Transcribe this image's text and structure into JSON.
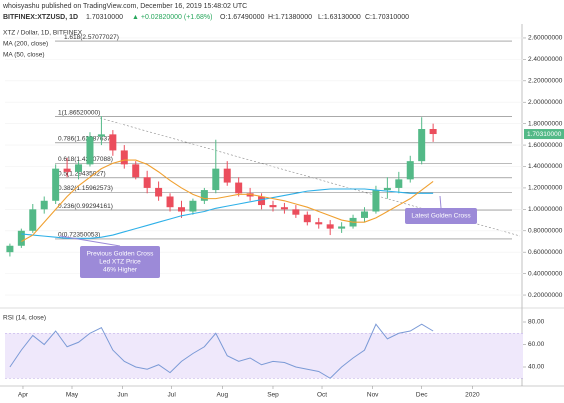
{
  "header": {
    "byline": "whoisyashu published on TradingView.com, December 16, 2019 15:48:02 UTC",
    "symbol": "BITFINEX:XTZUSD, 1D",
    "last": "1.70310000",
    "change": "▲ +0.02820000 (+1.68%)",
    "open": "O:1.67490000",
    "high": "H:1.71380000",
    "low": "L:1.63130000",
    "close": "C:1.70310000"
  },
  "chart_data": [
    {
      "type": "candlestick",
      "title": "XTZ / Dollar, 1D, BITFINEX",
      "x": [
        3,
        10,
        17,
        24,
        31,
        38,
        45,
        52,
        59,
        66,
        73,
        80,
        87,
        94,
        101,
        108,
        115,
        122,
        129,
        136,
        143,
        150,
        157,
        164,
        171,
        178,
        185,
        192,
        199,
        206,
        213,
        220,
        227,
        234,
        241,
        248,
        255,
        262
      ],
      "open": [
        0.6,
        0.66,
        0.8,
        1.0,
        1.08,
        1.38,
        1.35,
        1.42,
        1.68,
        1.7,
        1.55,
        1.42,
        1.3,
        1.2,
        1.12,
        1.02,
        0.98,
        1.08,
        1.18,
        1.38,
        1.25,
        1.15,
        1.12,
        1.04,
        1.02,
        1.0,
        0.95,
        0.88,
        0.86,
        0.82,
        0.84,
        0.92,
        0.98,
        1.18,
        1.2,
        1.28,
        1.45,
        1.75
      ],
      "high": [
        0.68,
        0.82,
        1.05,
        1.12,
        1.42,
        1.48,
        1.45,
        1.72,
        1.87,
        1.74,
        1.6,
        1.45,
        1.36,
        1.26,
        1.15,
        1.08,
        1.1,
        1.2,
        1.65,
        1.45,
        1.3,
        1.2,
        1.15,
        1.08,
        1.06,
        1.04,
        0.98,
        0.92,
        0.9,
        0.88,
        0.95,
        1.02,
        1.22,
        1.3,
        1.35,
        1.5,
        1.86,
        1.8
      ],
      "low": [
        0.56,
        0.64,
        0.78,
        0.96,
        1.05,
        1.3,
        1.28,
        1.4,
        1.6,
        1.5,
        1.38,
        1.28,
        1.15,
        1.08,
        0.98,
        0.92,
        0.95,
        1.05,
        1.15,
        1.22,
        1.12,
        1.08,
        1.0,
        0.98,
        0.96,
        0.92,
        0.85,
        0.82,
        0.76,
        0.78,
        0.82,
        0.88,
        0.96,
        1.1,
        1.15,
        1.25,
        1.42,
        1.63
      ],
      "close": [
        0.66,
        0.8,
        1.0,
        1.08,
        1.38,
        1.35,
        1.42,
        1.68,
        1.7,
        1.55,
        1.42,
        1.3,
        1.2,
        1.12,
        1.02,
        0.98,
        1.08,
        1.18,
        1.38,
        1.25,
        1.15,
        1.12,
        1.04,
        1.02,
        1.0,
        0.95,
        0.88,
        0.86,
        0.82,
        0.84,
        0.92,
        0.98,
        1.18,
        1.2,
        1.28,
        1.45,
        1.75,
        1.7031
      ],
      "up_color": "#53b987",
      "down_color": "#eb4d5c",
      "series": [
        {
          "name": "MA (200, close)",
          "color": "#2eb0e8",
          "values": [
            null,
            0.77,
            0.76,
            0.75,
            0.74,
            0.73,
            0.73,
            0.73,
            0.74,
            0.76,
            0.79,
            0.82,
            0.85,
            0.88,
            0.91,
            0.94,
            0.96,
            0.98,
            1.01,
            1.03,
            1.05,
            1.07,
            1.09,
            1.11,
            1.13,
            1.15,
            1.17,
            1.18,
            1.19,
            1.19,
            1.19,
            1.19,
            1.18,
            1.17,
            1.16,
            1.15,
            1.15,
            1.15
          ]
        },
        {
          "name": "MA (50, close)",
          "color": "#f0a030",
          "values": [
            null,
            0.7,
            0.76,
            0.88,
            1.0,
            1.12,
            1.22,
            1.3,
            1.38,
            1.43,
            1.46,
            1.46,
            1.42,
            1.35,
            1.27,
            1.2,
            1.14,
            1.1,
            1.1,
            1.12,
            1.14,
            1.14,
            1.12,
            1.1,
            1.08,
            1.05,
            1.02,
            0.98,
            0.94,
            0.9,
            0.88,
            0.88,
            0.92,
            0.98,
            1.04,
            1.1,
            1.18,
            1.26
          ]
        }
      ],
      "fib_levels": [
        {
          "value": 2.57077027,
          "label": "1.618(2.57077027)"
        },
        {
          "value": 1.8652,
          "label": "1(1.86520000)"
        },
        {
          "value": 1.62087637,
          "label": "0.786(1.62087637)"
        },
        {
          "value": 1.42907088,
          "label": "0.618(1.42907088)"
        },
        {
          "value": 1.29435027,
          "label": "0.5(1.29435027)"
        },
        {
          "value": 1.15962573,
          "label": "0.382(1.15962573)"
        },
        {
          "value": 0.99294161,
          "label": "0.236(0.99294161)"
        },
        {
          "value": 0.72350053,
          "label": "0(0.72350053)"
        }
      ],
      "price_tag": {
        "value": 1.7031,
        "label": "1.70310000"
      },
      "annotations": [
        [
          "Latest Golden Cross"
        ],
        [
          "Previous Golden Cross",
          "Led XTZ Price",
          "46% Higher"
        ]
      ],
      "xlim": [
        0,
        317
      ],
      "ylim": [
        0.107,
        2.721
      ],
      "yticks": [
        {
          "value": 0.2,
          "label": "0.20000000"
        },
        {
          "value": 0.4,
          "label": "0.40000000"
        },
        {
          "value": 0.6,
          "label": "0.60000000"
        },
        {
          "value": 0.8,
          "label": "0.80000000"
        },
        {
          "value": 1.0,
          "label": "1.00000000"
        },
        {
          "value": 1.2,
          "label": "1.20000000"
        },
        {
          "value": 1.4,
          "label": "1.40000000"
        },
        {
          "value": 1.6,
          "label": "1.60000000"
        },
        {
          "value": 1.8,
          "label": "1.80000000"
        },
        {
          "value": 2.0,
          "label": "2.00000000"
        },
        {
          "value": 2.2,
          "label": "2.20000000"
        },
        {
          "value": 2.4,
          "label": "2.40000000"
        },
        {
          "value": 2.6,
          "label": "2.60000000"
        }
      ]
    },
    {
      "type": "line",
      "title": "RSI (14, close)",
      "color": "#7b9ad6",
      "values": [
        40,
        55,
        68,
        60,
        72,
        58,
        62,
        70,
        75,
        55,
        45,
        40,
        38,
        42,
        35,
        45,
        52,
        58,
        70,
        50,
        45,
        48,
        42,
        45,
        44,
        40,
        38,
        36,
        30,
        40,
        48,
        55,
        78,
        65,
        70,
        72,
        78,
        72
      ],
      "band": [
        30,
        70
      ],
      "ylim": [
        24,
        88
      ],
      "yticks": [
        {
          "value": 80,
          "label": "80.00"
        },
        {
          "value": 60,
          "label": "60.00"
        },
        {
          "value": 40,
          "label": "40.00"
        }
      ],
      "xlim": [
        0,
        317
      ],
      "xticks": [
        {
          "value": 11,
          "label": "Apr"
        },
        {
          "value": 41,
          "label": "May"
        },
        {
          "value": 72,
          "label": "Jun"
        },
        {
          "value": 102,
          "label": "Jul"
        },
        {
          "value": 133,
          "label": "Aug"
        },
        {
          "value": 164,
          "label": "Sep"
        },
        {
          "value": 194,
          "label": "Oct"
        },
        {
          "value": 225,
          "label": "Nov"
        },
        {
          "value": 255,
          "label": "Dec"
        },
        {
          "value": 286,
          "label": "2020"
        }
      ]
    }
  ]
}
